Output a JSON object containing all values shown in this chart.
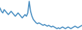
{
  "values": [
    2.8,
    2.6,
    2.5,
    2.7,
    2.6,
    2.5,
    2.4,
    2.5,
    2.6,
    2.5,
    2.4,
    2.3,
    2.4,
    2.5,
    2.4,
    2.3,
    2.2,
    2.3,
    2.4,
    2.3,
    2.5,
    3.2,
    2.6,
    2.3,
    2.1,
    2.0,
    1.9,
    1.85,
    1.9,
    1.85,
    1.8,
    1.75,
    1.8,
    1.75,
    1.7,
    1.75,
    1.7,
    1.65,
    1.7,
    1.65,
    1.6,
    1.55,
    1.6,
    1.55,
    1.6,
    1.65,
    1.6,
    1.55,
    1.6,
    1.65,
    1.6,
    1.55,
    1.6,
    1.65,
    1.7,
    1.65,
    1.6,
    1.65,
    1.7,
    1.75
  ],
  "line_color": "#4a8fc2",
  "background_color": "#ffffff",
  "linewidth": 1.2
}
